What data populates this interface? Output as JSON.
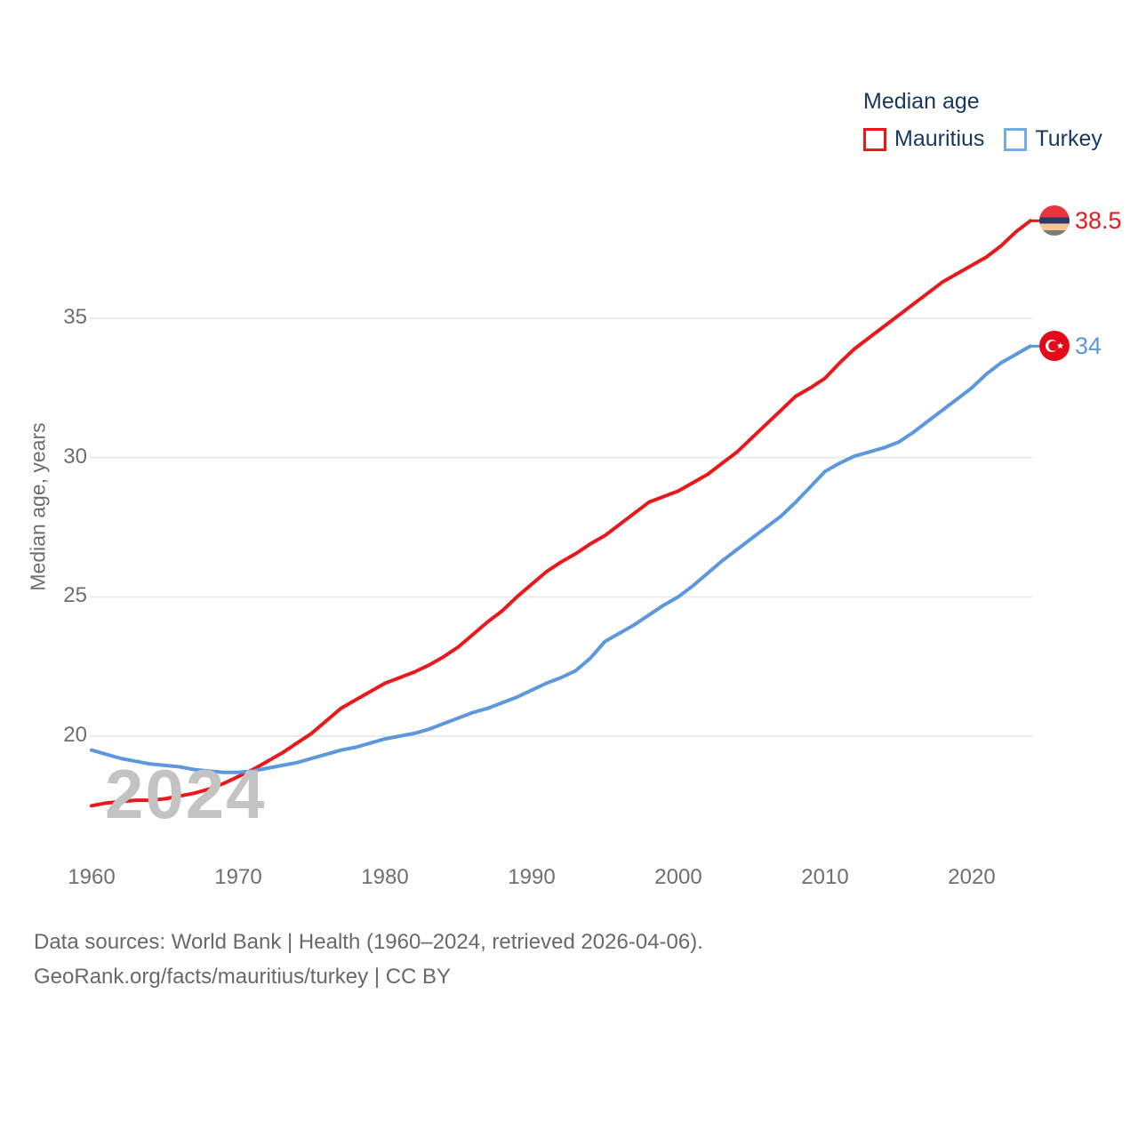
{
  "legend": {
    "title": "Median age",
    "items": [
      {
        "label": "Mauritius",
        "color": "#e8191d"
      },
      {
        "label": "Turkey",
        "color": "#74ade4"
      }
    ]
  },
  "y_axis": {
    "title": "Median age, years"
  },
  "watermark": "2024",
  "end_labels": {
    "mauritius": {
      "value": "38.5",
      "color": "#e8191d",
      "flag": "mauritius-flag"
    },
    "turkey": {
      "value": "34",
      "color": "#5d97dc",
      "flag": "turkey-flag"
    }
  },
  "footer": {
    "line1": "Data sources: World Bank | Health (1960–2024, retrieved 2026-04-06).",
    "line2": "GeoRank.org/facts/mauritius/turkey | CC BY"
  },
  "chart_data": {
    "type": "line",
    "title": "Median age",
    "xlabel": "",
    "ylabel": "Median age, years",
    "x_range": [
      1960,
      2024
    ],
    "ylim": [
      17,
      39.5
    ],
    "yticks": [
      20,
      25,
      30,
      35
    ],
    "xticks": [
      1960,
      1970,
      1980,
      1990,
      2000,
      2010,
      2020
    ],
    "grid": "horizontal",
    "gridline_color": "#ebebeb",
    "legend_position": "top-right",
    "x": [
      1960,
      1961,
      1962,
      1963,
      1964,
      1965,
      1966,
      1967,
      1968,
      1969,
      1970,
      1971,
      1972,
      1973,
      1974,
      1975,
      1976,
      1977,
      1978,
      1979,
      1980,
      1981,
      1982,
      1983,
      1984,
      1985,
      1986,
      1987,
      1988,
      1989,
      1990,
      1991,
      1992,
      1993,
      1994,
      1995,
      1996,
      1997,
      1998,
      1999,
      2000,
      2001,
      2002,
      2003,
      2004,
      2005,
      2006,
      2007,
      2008,
      2009,
      2010,
      2011,
      2012,
      2013,
      2014,
      2015,
      2016,
      2017,
      2018,
      2019,
      2020,
      2021,
      2022,
      2023,
      2024
    ],
    "series": [
      {
        "name": "Mauritius",
        "color": "#e8191d",
        "end_value": 38.5,
        "values": [
          17.5,
          17.6,
          17.65,
          17.7,
          17.7,
          17.75,
          17.85,
          17.95,
          18.1,
          18.3,
          18.55,
          18.8,
          19.1,
          19.4,
          19.75,
          20.1,
          20.55,
          21.0,
          21.3,
          21.6,
          21.9,
          22.1,
          22.3,
          22.55,
          22.85,
          23.2,
          23.65,
          24.1,
          24.5,
          25.0,
          25.45,
          25.9,
          26.25,
          26.55,
          26.9,
          27.2,
          27.6,
          28.0,
          28.4,
          28.6,
          28.8,
          29.1,
          29.4,
          29.8,
          30.2,
          30.7,
          31.2,
          31.7,
          32.2,
          32.5,
          32.85,
          33.4,
          33.9,
          34.3,
          34.7,
          35.1,
          35.5,
          35.9,
          36.3,
          36.6,
          36.9,
          37.2,
          37.6,
          38.1,
          38.5
        ]
      },
      {
        "name": "Turkey",
        "color": "#5d97dc",
        "end_value": 34,
        "values": [
          19.5,
          19.35,
          19.2,
          19.1,
          19.0,
          18.95,
          18.9,
          18.8,
          18.75,
          18.7,
          18.7,
          18.75,
          18.85,
          18.95,
          19.05,
          19.2,
          19.35,
          19.5,
          19.6,
          19.75,
          19.9,
          20.0,
          20.1,
          20.25,
          20.45,
          20.65,
          20.85,
          21.0,
          21.2,
          21.4,
          21.65,
          21.9,
          22.1,
          22.35,
          22.8,
          23.4,
          23.7,
          24.0,
          24.35,
          24.7,
          25.0,
          25.4,
          25.85,
          26.3,
          26.7,
          27.1,
          27.5,
          27.9,
          28.4,
          28.95,
          29.5,
          29.8,
          30.05,
          30.2,
          30.35,
          30.55,
          30.9,
          31.3,
          31.7,
          32.1,
          32.5,
          33.0,
          33.4,
          33.7,
          34.0
        ]
      }
    ]
  }
}
